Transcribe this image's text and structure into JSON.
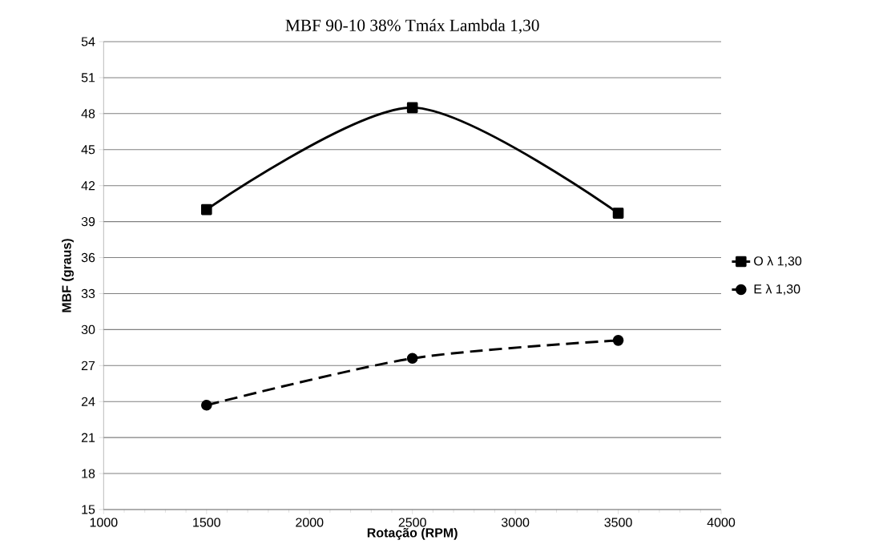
{
  "chart_data": {
    "type": "line",
    "title": "MBF 90-10  38% Tmáx Lambda 1,30",
    "xlabel": "Rotação (RPM)",
    "ylabel": "MBF (graus)",
    "x": [
      1500,
      2500,
      3500
    ],
    "series": [
      {
        "name": "O λ 1,30",
        "color": "#000000",
        "values": [
          40.0,
          48.5,
          39.7
        ],
        "marker": "square",
        "line_style": "solid"
      },
      {
        "name": "E λ 1,30",
        "color": "#000000",
        "values": [
          23.7,
          27.6,
          29.1
        ],
        "marker": "circle",
        "line_style": "dashed"
      }
    ],
    "xlim": [
      1000,
      4000
    ],
    "xticks": [
      1000,
      1500,
      2000,
      2500,
      3000,
      3500,
      4000
    ],
    "ylim": [
      15,
      54
    ],
    "yticks": [
      15,
      18,
      21,
      24,
      27,
      30,
      33,
      36,
      39,
      42,
      45,
      48,
      51,
      54
    ],
    "grid": "y",
    "legend": "right"
  }
}
